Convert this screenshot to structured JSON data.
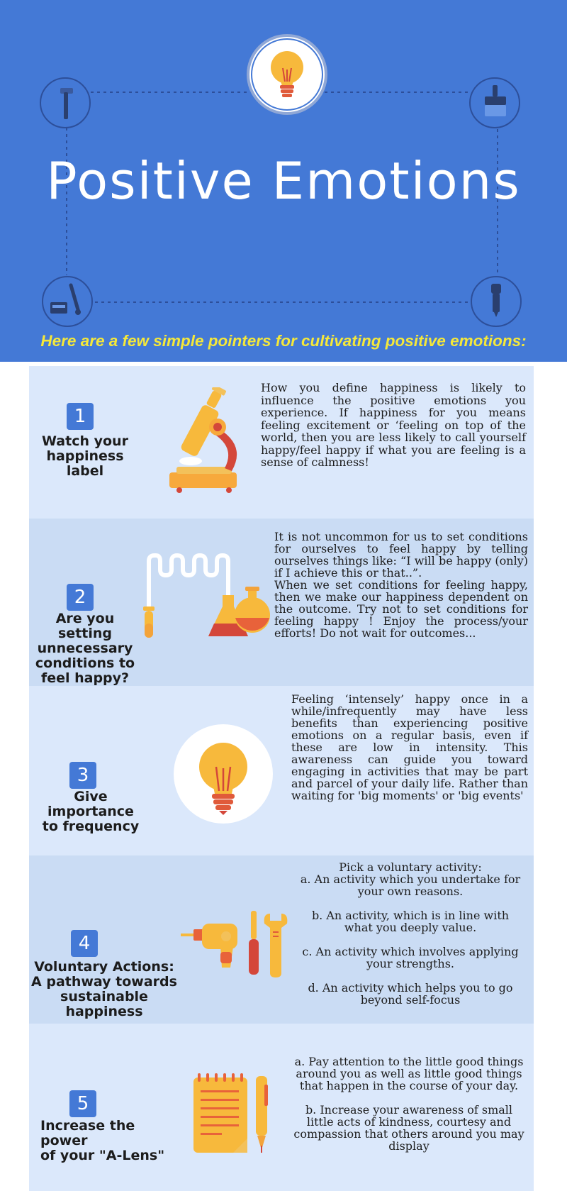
{
  "header": {
    "title": "Positive Emotions",
    "subtitle": "Here are a few simple pointers for cultivating positive emotions:",
    "icons": [
      "lightbulb-icon",
      "hammer-icon",
      "paintbrush-icon",
      "toolbox-icon",
      "marker-icon"
    ]
  },
  "colors": {
    "header_bg": "#4479d6",
    "subtitle": "#f5e83a",
    "section_light": "#dbe8fb",
    "section_mid": "#cadcf4",
    "badge": "#4479d6",
    "accent_orange": "#f7b93c",
    "accent_red": "#d4473a"
  },
  "sections": [
    {
      "number": "1",
      "title": "Watch your\nhappiness\nlabel",
      "illustration": "microscope-icon",
      "text": "How you define happiness is likely to influence the positive emotions you experience. If happiness for you means feeling excitement or ‘feeling on top of the world, then you are less likely to call yourself happy/feel happy if what you are feeling is a sense of calmness!"
    },
    {
      "number": "2",
      "title": "Are you setting\nunnecessary\nconditions to\nfeel happy?",
      "illustration": "lab-flasks-icon",
      "text": "It is not uncommon for us to set conditions for ourselves to feel happy by telling ourselves things like: “I will be happy (only) if I achieve this or that..”.\nWhen we set conditions for feeling happy, then we make our happiness dependent on the outcome. Try not to set conditions  for feeling happy ! Enjoy the process/your efforts! Do not wait for outcomes..."
    },
    {
      "number": "3",
      "title": "Give importance\nto frequency",
      "illustration": "lightbulb-icon",
      "text": "Feeling ‘intensely’ happy once in a while/infrequently may have less benefits than experiencing  positive emotions on a regular basis, even if these are low in intensity. This awareness can guide you toward engaging in activities that may be part and parcel of your daily life. Rather than waiting for 'big moments' or 'big events'"
    },
    {
      "number": "4",
      "title": "Voluntary Actions:\nA pathway towards\nsustainable happiness",
      "illustration": "tools-icon",
      "text": "Pick a voluntary activity:\na. An activity which you undertake for your own reasons.\n\nb. An activity, which is in line with what you deeply value.\n\nc. An activity which involves applying your strengths.\n\nd. An activity which helps you to go beyond self-focus"
    },
    {
      "number": "5",
      "title": "Increase the power\nof your \"A-Lens\"",
      "illustration": "notepad-pen-icon",
      "text": "a. Pay attention to the little good things around you as well as little good things that happen in the course of your day.\n\nb. Increase your awareness of small little acts of kindness, courtesy and compassion that others around you may display"
    }
  ]
}
